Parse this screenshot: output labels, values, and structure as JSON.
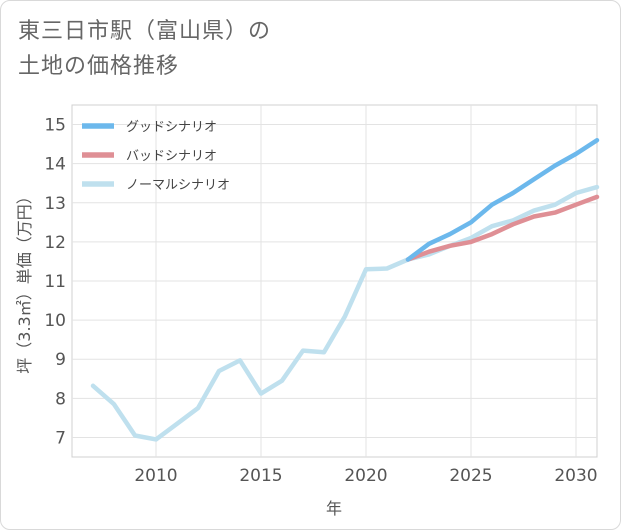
{
  "title": {
    "line1": "東三日市駅（富山県）の",
    "line2": "土地の価格推移"
  },
  "chart_data": {
    "type": "line",
    "xlabel": "年",
    "ylabel": "坪（3.3㎡）単価（万円）",
    "xlim": [
      2006,
      2031
    ],
    "ylim": [
      6.5,
      15.5
    ],
    "x_ticks": [
      2010,
      2015,
      2020,
      2025,
      2030
    ],
    "y_ticks": [
      7,
      8,
      9,
      10,
      11,
      12,
      13,
      14,
      15
    ],
    "grid": true,
    "legend_position": "top-left",
    "series": [
      {
        "name": "グッドシナリオ",
        "color": "#6cb8ec",
        "x": [
          2022,
          2023,
          2024,
          2025,
          2026,
          2027,
          2028,
          2029,
          2030,
          2031
        ],
        "y": [
          11.55,
          11.95,
          12.2,
          12.5,
          12.95,
          13.25,
          13.6,
          13.95,
          14.25,
          14.6
        ]
      },
      {
        "name": "バッドシナリオ",
        "color": "#df8f95",
        "x": [
          2022,
          2023,
          2024,
          2025,
          2026,
          2027,
          2028,
          2029,
          2030,
          2031
        ],
        "y": [
          11.55,
          11.75,
          11.9,
          12.0,
          12.2,
          12.45,
          12.65,
          12.75,
          12.95,
          13.15
        ]
      },
      {
        "name": "ノーマルシナリオ",
        "color": "#bfe0ee",
        "x": [
          2007,
          2008,
          2009,
          2010,
          2011,
          2012,
          2013,
          2014,
          2015,
          2016,
          2017,
          2018,
          2019,
          2020,
          2021,
          2022,
          2023,
          2024,
          2025,
          2026,
          2027,
          2028,
          2029,
          2030,
          2031
        ],
        "y": [
          8.32,
          7.85,
          7.05,
          6.95,
          7.35,
          7.75,
          8.7,
          8.97,
          8.12,
          8.45,
          9.22,
          9.18,
          10.1,
          11.3,
          11.32,
          11.55,
          11.68,
          11.9,
          12.1,
          12.4,
          12.55,
          12.8,
          12.95,
          13.25,
          13.4
        ]
      }
    ]
  }
}
